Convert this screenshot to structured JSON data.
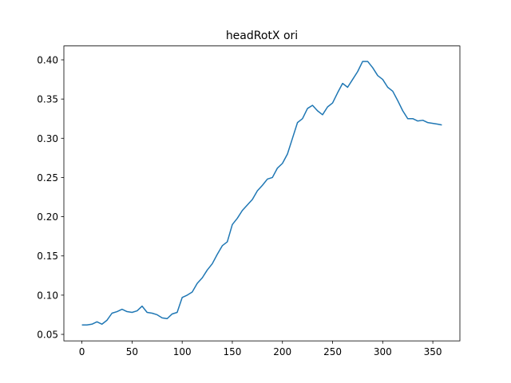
{
  "chart_data": {
    "type": "line",
    "title": "headRotX ori",
    "x": [
      0,
      5,
      10,
      15,
      20,
      25,
      30,
      35,
      40,
      45,
      50,
      55,
      60,
      65,
      70,
      75,
      80,
      85,
      90,
      95,
      100,
      105,
      110,
      115,
      120,
      125,
      130,
      135,
      140,
      145,
      150,
      155,
      160,
      165,
      170,
      175,
      180,
      185,
      190,
      195,
      200,
      205,
      210,
      215,
      220,
      225,
      230,
      235,
      240,
      245,
      250,
      255,
      260,
      265,
      270,
      275,
      280,
      285,
      290,
      295,
      300,
      305,
      310,
      315,
      320,
      325,
      330,
      335,
      340,
      345,
      350,
      355,
      359
    ],
    "series": [
      {
        "name": "headRotX ori",
        "color": "#1f77b4",
        "values": [
          0.062,
          0.062,
          0.063,
          0.066,
          0.063,
          0.068,
          0.077,
          0.079,
          0.082,
          0.079,
          0.078,
          0.08,
          0.086,
          0.078,
          0.077,
          0.075,
          0.071,
          0.07,
          0.076,
          0.078,
          0.097,
          0.1,
          0.104,
          0.115,
          0.122,
          0.132,
          0.14,
          0.152,
          0.163,
          0.168,
          0.19,
          0.198,
          0.208,
          0.215,
          0.222,
          0.233,
          0.24,
          0.248,
          0.25,
          0.262,
          0.268,
          0.28,
          0.3,
          0.32,
          0.325,
          0.338,
          0.342,
          0.335,
          0.33,
          0.34,
          0.345,
          0.358,
          0.37,
          0.365,
          0.375,
          0.385,
          0.398,
          0.398,
          0.39,
          0.38,
          0.375,
          0.365,
          0.36,
          0.348,
          0.335,
          0.325,
          0.325,
          0.322,
          0.323,
          0.32,
          0.319,
          0.318,
          0.317
        ]
      }
    ],
    "xlim": [
      -18,
      377
    ],
    "ylim": [
      0.0417,
      0.4177
    ],
    "xticks": [
      0,
      50,
      100,
      150,
      200,
      250,
      300,
      350
    ],
    "yticks": [
      {
        "value": 0.05,
        "label": "0.05"
      },
      {
        "value": 0.1,
        "label": "0.10"
      },
      {
        "value": 0.15,
        "label": "0.15"
      },
      {
        "value": 0.2,
        "label": "0.20"
      },
      {
        "value": 0.25,
        "label": "0.25"
      },
      {
        "value": 0.3,
        "label": "0.30"
      },
      {
        "value": 0.35,
        "label": "0.35"
      },
      {
        "value": 0.4,
        "label": "0.40"
      }
    ],
    "grid": false
  }
}
